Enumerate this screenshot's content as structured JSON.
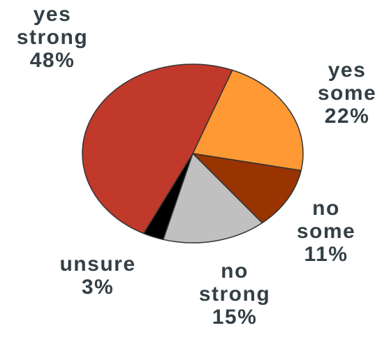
{
  "chart_data": {
    "type": "pie",
    "title": "",
    "slices": [
      {
        "label": [
          "yes",
          "some"
        ],
        "value": 22,
        "value_label": "22%",
        "color": "#ff9933"
      },
      {
        "label": [
          "no",
          "some"
        ],
        "value": 11,
        "value_label": "11%",
        "color": "#993300"
      },
      {
        "label": [
          "no",
          "strong"
        ],
        "value": 15,
        "value_label": "15%",
        "color": "#c0c0c0"
      },
      {
        "label": [
          "unsure"
        ],
        "value": 3,
        "value_label": "3%",
        "color": "#000000"
      },
      {
        "label": [
          "yes",
          "strong"
        ],
        "value": 48,
        "value_label": "48%",
        "color": "#c0392b"
      }
    ],
    "outline_color": "#333333",
    "text_color": "#333f45"
  }
}
